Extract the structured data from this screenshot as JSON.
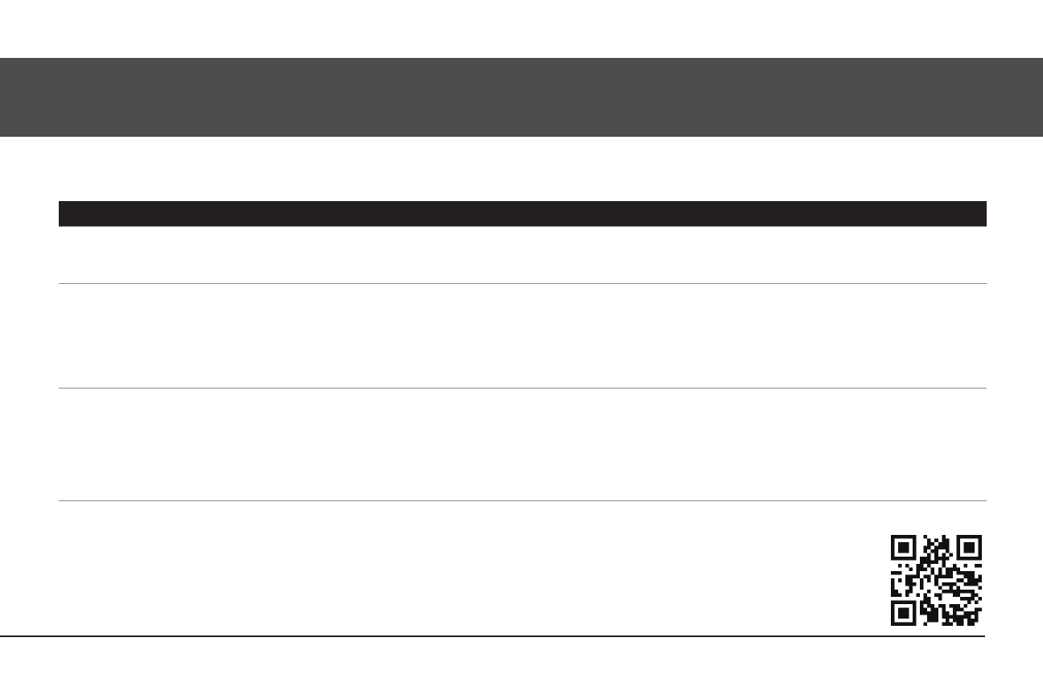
{
  "colors": {
    "banner": "#4e4c4d",
    "table_header": "#231f20",
    "row_divider": "#8a8a8a",
    "footer_rule": "#231f20"
  },
  "qr_code": {
    "icon": "qr-code-icon"
  }
}
